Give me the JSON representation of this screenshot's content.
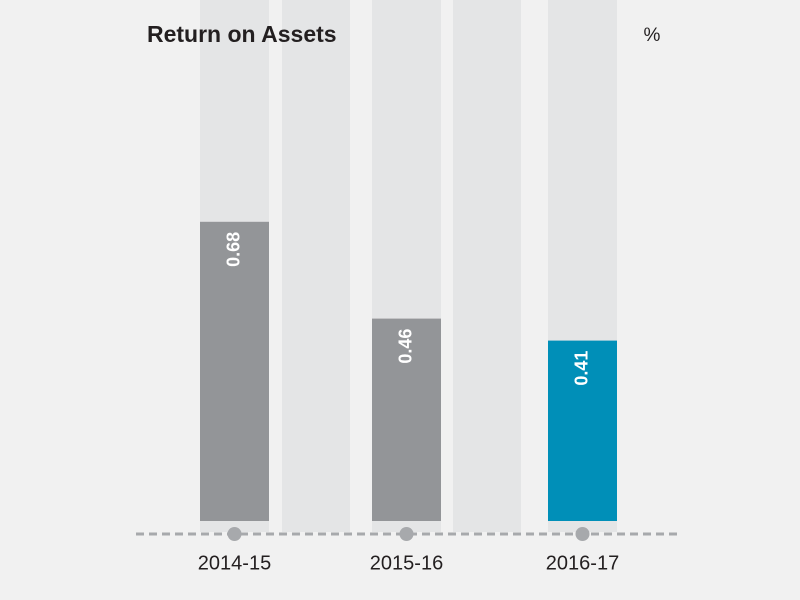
{
  "chart_data": {
    "type": "bar",
    "title": "Return on Assets",
    "unit": "%",
    "categories": [
      "2014-15",
      "2015-16",
      "2016-17"
    ],
    "values": [
      0.68,
      0.46,
      0.41
    ],
    "colors": [
      "#939598",
      "#939598",
      "#008fb8"
    ]
  }
}
